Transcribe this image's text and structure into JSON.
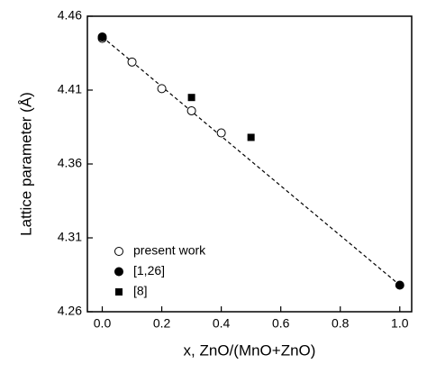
{
  "chart_data": {
    "type": "scatter",
    "xlabel": "x, ZnO/(MnO+ZnO)",
    "ylabel": "Lattice parameter (Å)",
    "xlim": [
      -0.05,
      1.04
    ],
    "ylim": [
      4.26,
      4.46
    ],
    "xticks": [
      {
        "value": 0,
        "label": "0.0"
      },
      0.2,
      0.4,
      0.6,
      0.8,
      {
        "value": 1,
        "label": "1.0"
      }
    ],
    "yticks": [
      4.26,
      4.31,
      4.36,
      4.41,
      4.46
    ],
    "legend": "lower left",
    "series": [
      {
        "name": "present work",
        "color": "#000000",
        "marker": "open-circle",
        "x": [
          0,
          0.1,
          0.2,
          0.3,
          0.4
        ],
        "values": [
          4.445,
          4.429,
          4.411,
          4.396,
          4.381
        ]
      },
      {
        "name": "[1,26]",
        "color": "#000000",
        "marker": "filled-circle",
        "x": [
          0,
          1
        ],
        "values": [
          4.446,
          4.278
        ]
      },
      {
        "name": "[8]",
        "color": "#000000",
        "marker": "filled-square",
        "x": [
          0.3,
          0.5
        ],
        "values": [
          4.405,
          4.378
        ]
      },
      {
        "color": "#000000",
        "marker": "dashed-line",
        "x": [
          0,
          1
        ],
        "values": [
          4.446,
          4.278
        ]
      }
    ]
  }
}
